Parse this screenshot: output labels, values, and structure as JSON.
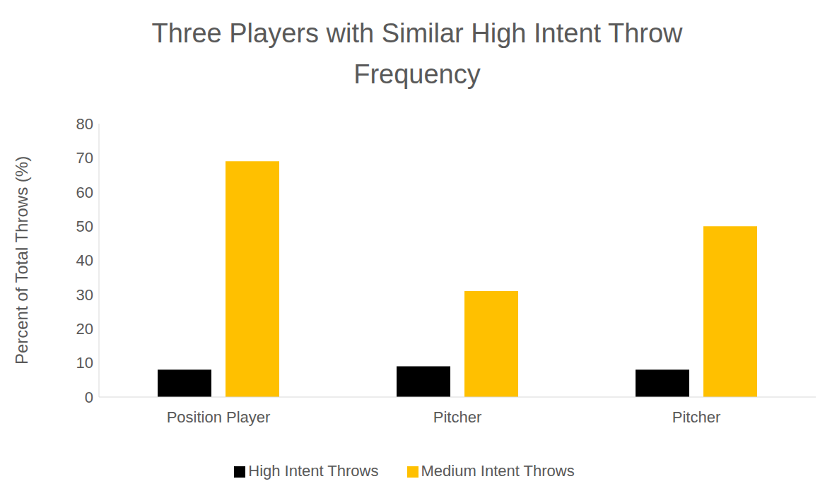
{
  "chart_data": {
    "type": "bar",
    "title": "Three Players with Similar High Intent Throw Frequency",
    "y_label": "Percent of Total Throws (%)",
    "categories": [
      "Position Player",
      "Pitcher",
      "Pitcher"
    ],
    "series": [
      {
        "name": "High Intent Throws",
        "color": "#000000",
        "values": [
          8,
          9,
          8
        ]
      },
      {
        "name": "Medium Intent Throws",
        "color": "#ffc000",
        "values": [
          69,
          31,
          50
        ]
      }
    ],
    "ylim": [
      0,
      80
    ],
    "yticks": [
      0,
      10,
      20,
      30,
      40,
      50,
      60,
      70,
      80
    ],
    "grid": false,
    "legend": "bottom"
  }
}
